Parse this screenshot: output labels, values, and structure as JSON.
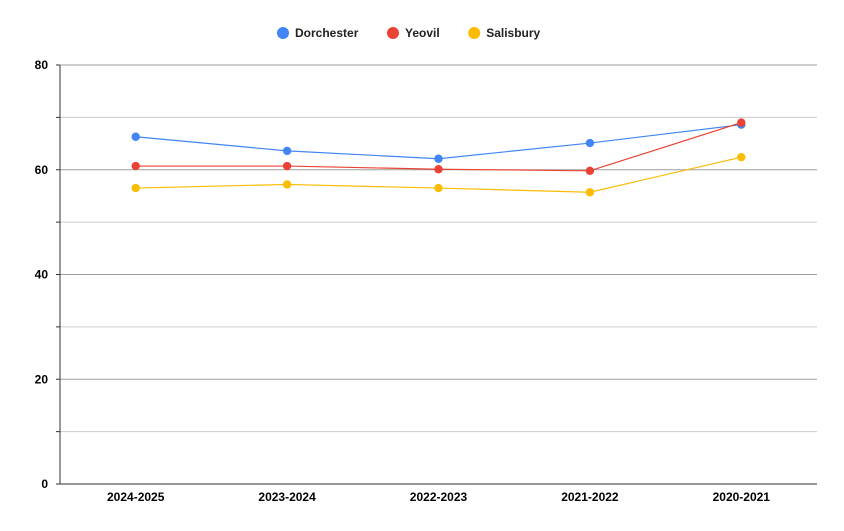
{
  "chart_data": {
    "type": "line",
    "title": "",
    "xlabel": "",
    "ylabel": "",
    "categories": [
      "2024-2025",
      "2023-2024",
      "2022-2023",
      "2021-2022",
      "2020-2021"
    ],
    "series": [
      {
        "name": "Dorchester",
        "color": "#4285f4",
        "values": [
          66.3,
          63.6,
          62.1,
          65.1,
          68.6
        ]
      },
      {
        "name": "Yeovil",
        "color": "#ea4335",
        "values": [
          60.7,
          60.7,
          60.1,
          59.8,
          69.0
        ]
      },
      {
        "name": "Salisbury",
        "color": "#fbbc04",
        "values": [
          56.5,
          57.2,
          56.5,
          55.7,
          62.4
        ]
      }
    ],
    "ylim": [
      0,
      80
    ],
    "y_ticks": [
      0,
      20,
      40,
      60,
      80
    ],
    "grid": true,
    "legend_position": "top-center"
  }
}
